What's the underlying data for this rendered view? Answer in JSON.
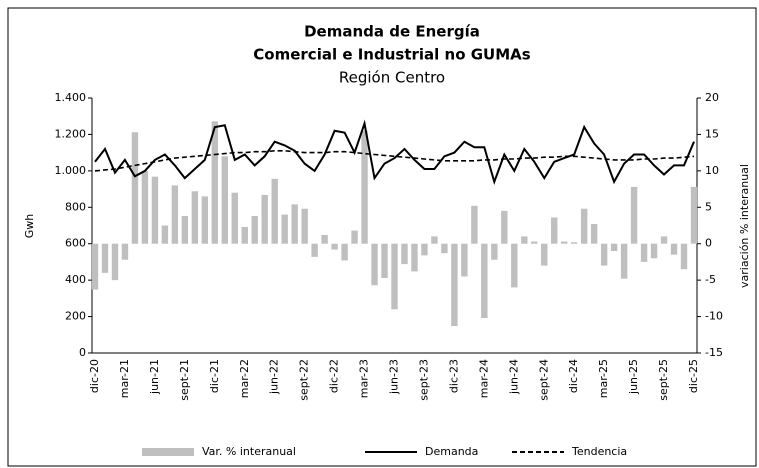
{
  "chart_data": {
    "type": "bar",
    "title": "Demanda de Energía",
    "subtitle": "Comercial e Industrial no GUMAs",
    "subtitle2": "Región Centro",
    "ylabel": "Gwh",
    "y2label": "variación % interanual",
    "categories": [
      "dic-20",
      null,
      null,
      "mar-21",
      null,
      null,
      "jun-21",
      null,
      null,
      "sept-21",
      null,
      null,
      "dic-21",
      null,
      null,
      "mar-22",
      null,
      null,
      "jun-22",
      null,
      null,
      "sept-22",
      null,
      null,
      "dic-22",
      null,
      null,
      "mar-23",
      null,
      null,
      "jun-23",
      null,
      null,
      "sept-23",
      null,
      null,
      "dic-23",
      null,
      null,
      "mar-24",
      null,
      null,
      "jun-24",
      null,
      null,
      "sept-24",
      null,
      null,
      "dic-24",
      null,
      null,
      "mar-25",
      null,
      null,
      "jun-25",
      null,
      null,
      "sept-25",
      null,
      null,
      "dic-25"
    ],
    "series": [
      {
        "name": "Var. % interanual",
        "type": "bar",
        "axis": "y2",
        "color": "#bfbfbf",
        "values": [
          -6.3,
          -4,
          -5,
          -2.2,
          15.3,
          10,
          9.2,
          2.5,
          8,
          3.8,
          7.2,
          6.5,
          16.8,
          12,
          7,
          2.3,
          3.8,
          6.7,
          8.9,
          4,
          5.4,
          4.8,
          -1.8,
          1.2,
          -0.8,
          -2.3,
          1.8,
          15.5,
          -5.7,
          -4.7,
          -9,
          -2.8,
          -3.8,
          -1.6,
          1,
          -1.3,
          -11.3,
          -4.5,
          5.2,
          -10.2,
          -2.2,
          4.5,
          -6,
          1,
          0.3,
          -3,
          3.6,
          0.3,
          0.2,
          4.8,
          2.7,
          -3,
          -1,
          -4.8,
          7.8,
          -2.5,
          -2,
          1,
          -1.5,
          -3.5,
          7.8
        ]
      },
      {
        "name": "Demanda",
        "type": "line",
        "color": "#000000",
        "values": [
          1050,
          1120,
          990,
          1060,
          970,
          1000,
          1060,
          1090,
          1030,
          960,
          1010,
          1060,
          1240,
          1250,
          1060,
          1090,
          1030,
          1080,
          1160,
          1140,
          1110,
          1040,
          1000,
          1090,
          1220,
          1210,
          1100,
          1260,
          960,
          1040,
          1070,
          1120,
          1060,
          1010,
          1010,
          1080,
          1100,
          1160,
          1130,
          1130,
          940,
          1090,
          1000,
          1120,
          1050,
          960,
          1050,
          1070,
          1090,
          1240,
          1150,
          1090,
          940,
          1040,
          1090,
          1090,
          1030,
          980,
          1030,
          1030,
          1160
        ]
      },
      {
        "name": "Tendencia",
        "type": "line",
        "dashed": true,
        "color": "#000000",
        "values": [
          1000,
          1005,
          1010,
          1020,
          1030,
          1040,
          1050,
          1060,
          1070,
          1075,
          1080,
          1085,
          1090,
          1095,
          1100,
          1100,
          1105,
          1105,
          1110,
          1110,
          1105,
          1100,
          1100,
          1100,
          1105,
          1105,
          1100,
          1095,
          1090,
          1085,
          1080,
          1075,
          1070,
          1065,
          1060,
          1055,
          1055,
          1055,
          1055,
          1060,
          1060,
          1065,
          1065,
          1070,
          1070,
          1075,
          1075,
          1080,
          1080,
          1075,
          1070,
          1065,
          1060,
          1060,
          1060,
          1065,
          1065,
          1070,
          1070,
          1075,
          1080
        ]
      }
    ],
    "ylim": [
      0,
      1400
    ],
    "yticks": [
      0,
      200,
      400,
      600,
      800,
      {
        "value": 1000,
        "label": "1.000"
      },
      {
        "value": 1200,
        "label": "1.200"
      },
      {
        "value": 1400,
        "label": "1.400"
      }
    ],
    "y2lim": [
      -15,
      20
    ],
    "y2ticks": [
      -15,
      -10,
      -5,
      0,
      5,
      10,
      15,
      20
    ],
    "legend": "bottom"
  }
}
